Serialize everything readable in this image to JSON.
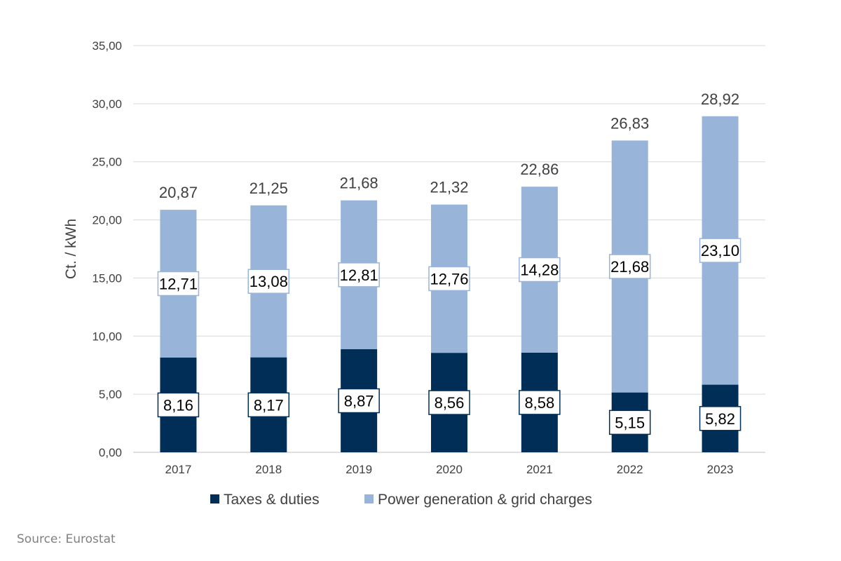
{
  "chart_data": {
    "type": "bar",
    "stacked": true,
    "categories": [
      "2017",
      "2018",
      "2019",
      "2020",
      "2021",
      "2022",
      "2023"
    ],
    "series": [
      {
        "name": "Taxes & duties",
        "color": "#002e56",
        "values": [
          8.16,
          8.17,
          8.87,
          8.56,
          8.58,
          5.15,
          5.82
        ],
        "labels": [
          "8,16",
          "8,17",
          "8,87",
          "8,56",
          "8,58",
          "5,15",
          "5,82"
        ]
      },
      {
        "name": "Power generation & grid charges",
        "color": "#98b4d8",
        "values": [
          12.71,
          13.08,
          12.81,
          12.76,
          14.28,
          21.68,
          23.1
        ],
        "labels": [
          "12,71",
          "13,08",
          "12,81",
          "12,76",
          "14,28",
          "21,68",
          "23,10"
        ]
      }
    ],
    "totals": [
      20.87,
      21.25,
      21.68,
      21.32,
      22.86,
      26.83,
      28.92
    ],
    "total_labels": [
      "20,87",
      "21,25",
      "21,68",
      "21,32",
      "22,86",
      "26,83",
      "28,92"
    ],
    "ylabel": "Ct. / kWh",
    "ylim": [
      0,
      35
    ],
    "yticks": [
      0,
      5,
      10,
      15,
      20,
      25,
      30,
      35
    ],
    "ytick_labels": [
      "0,00",
      "5,00",
      "10,00",
      "15,00",
      "20,00",
      "25,00",
      "30,00",
      "35,00"
    ],
    "grid": true,
    "legend_position": "bottom"
  },
  "source": "Source: Eurostat"
}
